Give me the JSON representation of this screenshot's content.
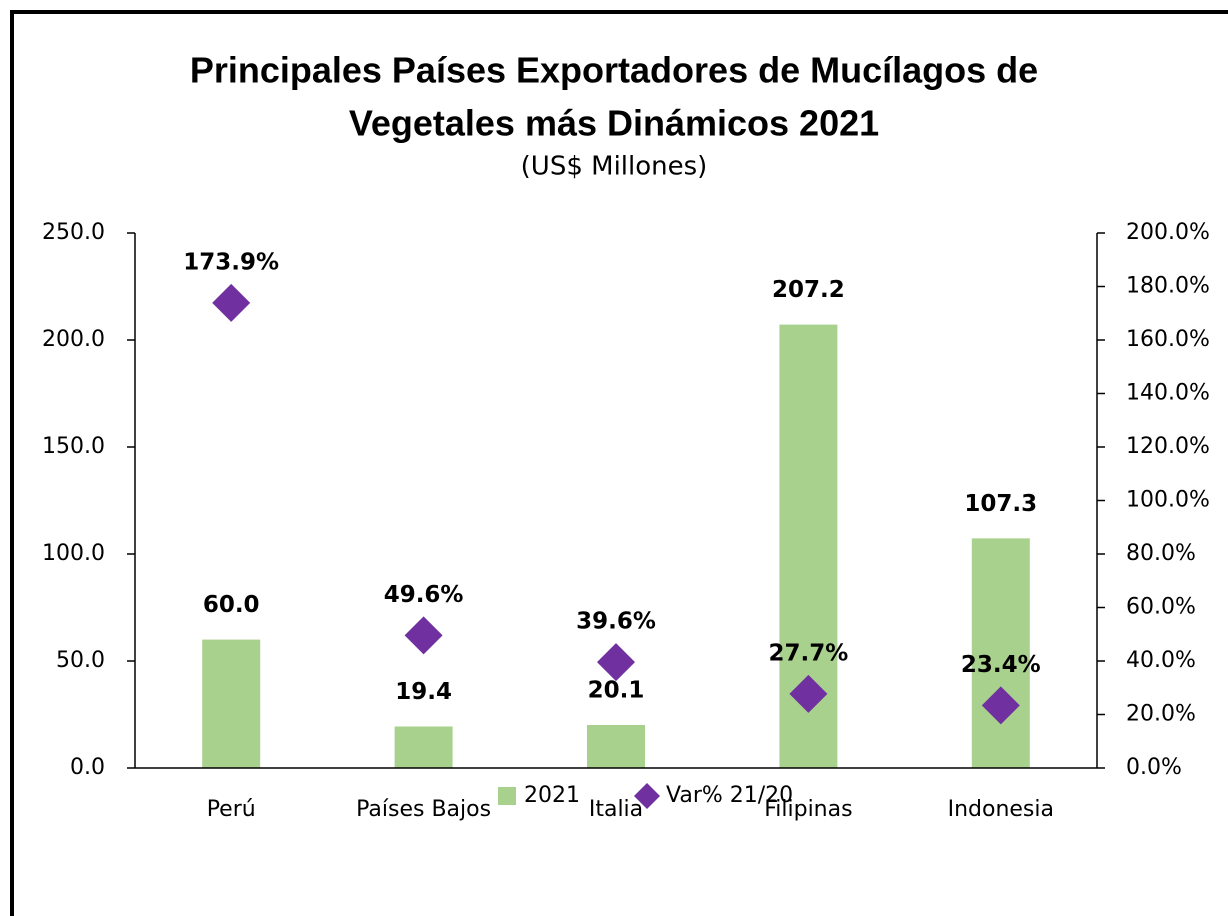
{
  "chart_data": {
    "type": "bar",
    "title": [
      "Principales Países Exportadores de Mucílagos de",
      "Vegetales más Dinámicos 2021"
    ],
    "subtitle": "(US$ Millones)",
    "categories": [
      "Perú",
      "Países Bajos",
      "Italia",
      "Filipinas",
      "Indonesia"
    ],
    "series": [
      {
        "name": "2021",
        "type": "bar",
        "color": "#a9d18e",
        "values": [
          60.0,
          19.4,
          20.1,
          207.2,
          107.3
        ],
        "value_labels": [
          "60.0",
          "19.4",
          "20.1",
          "207.2",
          "107.3"
        ]
      },
      {
        "name": "Var% 21/20",
        "type": "scatter",
        "axis": "y2",
        "marker": "diamond",
        "color": "#7030a0",
        "values": [
          173.9,
          49.6,
          39.6,
          27.7,
          23.4
        ],
        "value_labels": [
          "173.9%",
          "49.6%",
          "39.6%",
          "27.7%",
          "23.4%"
        ]
      }
    ],
    "ylim": [
      0,
      250
    ],
    "yticks": [
      {
        "value": 0,
        "label": "0.0"
      },
      {
        "value": 50,
        "label": "50.0"
      },
      {
        "value": 100,
        "label": "100.0"
      },
      {
        "value": 150,
        "label": "150.0"
      },
      {
        "value": 200,
        "label": "200.0"
      },
      {
        "value": 250,
        "label": "250.0"
      }
    ],
    "y2lim": [
      0,
      200
    ],
    "y2ticks": [
      {
        "value": 0,
        "label": "0.0%"
      },
      {
        "value": 20,
        "label": "20.0%"
      },
      {
        "value": 40,
        "label": "40.0%"
      },
      {
        "value": 60,
        "label": "60.0%"
      },
      {
        "value": 80,
        "label": "80.0%"
      },
      {
        "value": 100,
        "label": "100.0%"
      },
      {
        "value": 120,
        "label": "120.0%"
      },
      {
        "value": 140,
        "label": "140.0%"
      },
      {
        "value": 160,
        "label": "160.0%"
      },
      {
        "value": 180,
        "label": "180.0%"
      },
      {
        "value": 200,
        "label": "200.0%"
      }
    ],
    "grid": false,
    "legend": "bottom"
  }
}
